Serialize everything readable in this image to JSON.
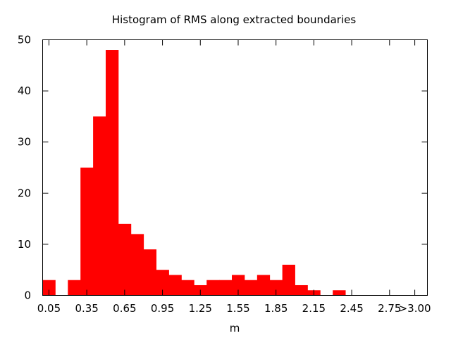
{
  "chart_data": {
    "type": "bar",
    "title": "Histogram of RMS along extracted boundaries",
    "xlabel": "m",
    "ylabel": "",
    "xlim": [
      0.0,
      3.05
    ],
    "ylim": [
      0,
      50
    ],
    "bin_width": 0.1,
    "grid": false,
    "legend": "none",
    "bar_color": "#ff0000",
    "bins": [
      0.05,
      0.15,
      0.25,
      0.35,
      0.45,
      0.55,
      0.65,
      0.75,
      0.85,
      0.95,
      1.05,
      1.15,
      1.25,
      1.35,
      1.45,
      1.55,
      1.65,
      1.75,
      1.85,
      1.95,
      2.05,
      2.15,
      2.25,
      2.35,
      2.45,
      2.55,
      2.65,
      2.75,
      2.85,
      2.95
    ],
    "values": [
      3,
      0,
      3,
      25,
      35,
      48,
      14,
      12,
      9,
      5,
      4,
      3,
      2,
      3,
      3,
      4,
      3,
      4,
      3,
      6,
      2,
      1,
      0,
      1,
      0,
      0,
      0,
      0,
      0,
      0
    ],
    "x_ticks": [
      {
        "value": 0.05,
        "label": "0.05"
      },
      {
        "value": 0.35,
        "label": "0.35"
      },
      {
        "value": 0.65,
        "label": "0.65"
      },
      {
        "value": 0.95,
        "label": "0.95"
      },
      {
        "value": 1.25,
        "label": "1.25"
      },
      {
        "value": 1.55,
        "label": "1.55"
      },
      {
        "value": 1.85,
        "label": "1.85"
      },
      {
        "value": 2.15,
        "label": "2.15"
      },
      {
        "value": 2.45,
        "label": "2.45"
      },
      {
        "value": 2.75,
        "label": "2.75"
      },
      {
        "value": 2.95,
        "label": ">3.00"
      }
    ],
    "y_ticks": [
      {
        "value": 0,
        "label": "0"
      },
      {
        "value": 10,
        "label": "10"
      },
      {
        "value": 20,
        "label": "20"
      },
      {
        "value": 30,
        "label": "30"
      },
      {
        "value": 40,
        "label": "40"
      },
      {
        "value": 50,
        "label": "50"
      }
    ]
  }
}
